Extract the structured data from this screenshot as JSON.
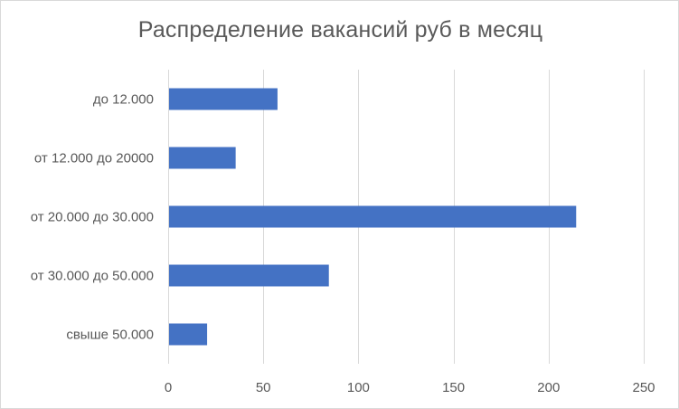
{
  "chart_data": {
    "type": "bar",
    "orientation": "horizontal",
    "title": "Распределение вакансий руб в месяц",
    "categories": [
      "до 12.000",
      "от 12.000 до 20000",
      "от 20.000 до 30.000",
      "от 30.000 до 50.000",
      "свыше 50.000"
    ],
    "values": [
      57,
      35,
      214,
      84,
      20
    ],
    "xlim": [
      0,
      250
    ],
    "xticks": [
      0,
      50,
      100,
      150,
      200,
      250
    ],
    "xlabel": "",
    "ylabel": "",
    "grid": "vertical",
    "legend": "none",
    "bar_color": "#4472c4",
    "grid_color": "#d9d9d9"
  }
}
